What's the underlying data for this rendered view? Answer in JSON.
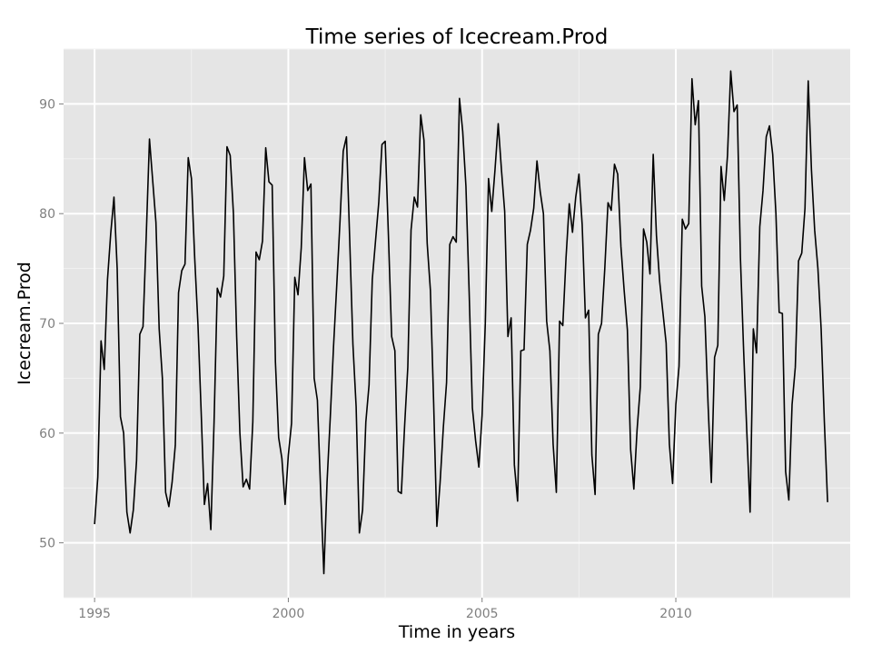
{
  "chart_data": {
    "type": "line",
    "title": "Time series of Icecream.Prod",
    "xlabel": "Time in years",
    "ylabel": "Icecream.Prod",
    "xlim": [
      1994.2,
      2014.5
    ],
    "ylim": [
      45,
      95
    ],
    "x_ticks": [
      1995,
      2000,
      2005,
      2010
    ],
    "y_ticks": [
      50,
      60,
      70,
      80,
      90
    ],
    "x_tick_labels": [
      "1995",
      "2000",
      "2005",
      "2010"
    ],
    "y_tick_labels": [
      "50",
      "60",
      "70",
      "80",
      "90"
    ],
    "grid": true,
    "legend": "none",
    "background": "#e5e5e5",
    "line_color": "#000000",
    "x_start": 1995.0,
    "x_step_label": "monthly",
    "series": [
      {
        "values": [
          51.7,
          56.0,
          68.4,
          65.8,
          74.0,
          78.2,
          81.5,
          75.0,
          61.5,
          60.0,
          52.8,
          50.9,
          53.0,
          57.5,
          69.0,
          69.7,
          78.0,
          86.8,
          83.0,
          79.2,
          69.5,
          65.0,
          54.6,
          53.3,
          55.5,
          58.9,
          72.8,
          74.8,
          75.4,
          85.1,
          83.2,
          76.0,
          70.0,
          62.0,
          53.5,
          55.4,
          51.2,
          61.0,
          73.2,
          72.4,
          74.3,
          86.1,
          85.3,
          80.0,
          68.8,
          60.0,
          55.1,
          55.8,
          54.9,
          61.0,
          76.5,
          75.8,
          77.5,
          86.0,
          82.9,
          82.6,
          66.5,
          59.6,
          57.7,
          53.5,
          58.0,
          60.9,
          74.2,
          72.6,
          76.9,
          85.1,
          82.1,
          82.7,
          65.0,
          63.0,
          54.8,
          47.2,
          55.6,
          61.5,
          67.9,
          73.5,
          79.3,
          85.7,
          87.0,
          77.7,
          68.1,
          62.4,
          50.9,
          53.0,
          61.0,
          64.4,
          74.0,
          77.5,
          81.0,
          86.3,
          86.6,
          78.0,
          68.8,
          67.5,
          54.7,
          54.5,
          60.6,
          66.0,
          78.5,
          81.5,
          80.6,
          89.0,
          86.7,
          77.3,
          73.0,
          62.8,
          51.5,
          55.5,
          60.5,
          64.6,
          77.2,
          77.9,
          77.4,
          90.5,
          87.5,
          82.5,
          72.8,
          62.3,
          59.3,
          56.9,
          61.6,
          70.0,
          83.2,
          80.2,
          84.0,
          88.2,
          84.0,
          80.2,
          68.8,
          70.5,
          57.1,
          53.8,
          67.5,
          67.6,
          77.2,
          78.5,
          80.5,
          84.8,
          82.0,
          80.0,
          70.2,
          67.5,
          59.0,
          54.6,
          70.2,
          69.8,
          76.0,
          80.9,
          78.3,
          81.5,
          83.6,
          79.0,
          70.5,
          71.2,
          58.0,
          54.4,
          69.0,
          70.0,
          75.0,
          81.0,
          80.3,
          84.5,
          83.6,
          77.0,
          73.0,
          69.4,
          58.5,
          54.9,
          60.3,
          64.2,
          78.6,
          77.4,
          74.5,
          85.4,
          78.0,
          73.8,
          71.0,
          68.2,
          59.0,
          55.4,
          62.6,
          66.1,
          79.5,
          78.6,
          79.1,
          92.3,
          88.1,
          90.3,
          73.4,
          70.6,
          62.5,
          55.5,
          66.9,
          68.0,
          84.3,
          81.2,
          85.3,
          93.0,
          89.3,
          89.9,
          76.0,
          67.5,
          60.0,
          52.8,
          69.5,
          67.3,
          78.8,
          82.1,
          87.0,
          88.0,
          85.4,
          80.0,
          71.0,
          70.9,
          56.5,
          53.9,
          62.6,
          66.0,
          75.7,
          76.4,
          80.5,
          92.1,
          84.0,
          78.5,
          75.0,
          69.5,
          61.0,
          53.7
        ]
      }
    ]
  }
}
